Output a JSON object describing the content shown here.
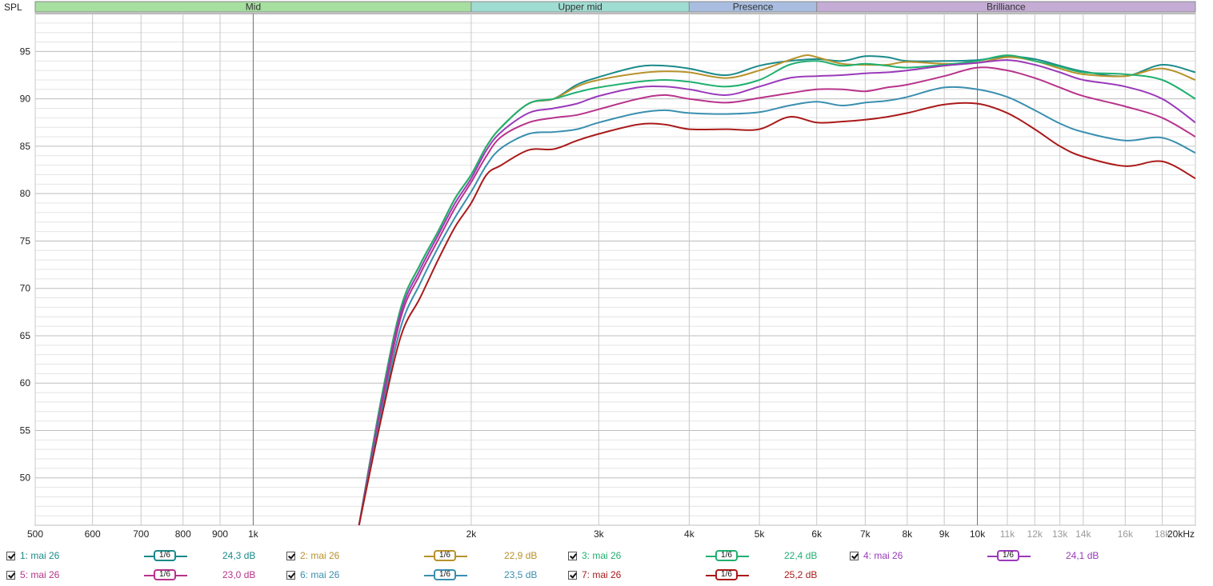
{
  "chart_data": {
    "type": "line",
    "title": "",
    "ylabel": "SPL",
    "xlabel": "",
    "x_scale": "log",
    "xlim": [
      500,
      20000
    ],
    "ylim": [
      45,
      99
    ],
    "grid": true,
    "bands": [
      {
        "label": "Mid",
        "from": 500,
        "to": 2000,
        "color": "#a6dfa0"
      },
      {
        "label": "Upper mid",
        "from": 2000,
        "to": 4000,
        "color": "#9fdcd2"
      },
      {
        "label": "Presence",
        "from": 4000,
        "to": 6000,
        "color": "#a8bde0"
      },
      {
        "label": "Brilliance",
        "from": 6000,
        "to": 20000,
        "color": "#c4acd4"
      }
    ],
    "y_ticks": [
      50,
      55,
      60,
      65,
      70,
      75,
      80,
      85,
      90,
      95
    ],
    "y_tick_labels": [
      "50",
      "55",
      "60",
      "65",
      "70",
      "75",
      "80",
      "85",
      "90",
      "95"
    ],
    "x_ticks": [
      500,
      600,
      700,
      800,
      900,
      1000,
      2000,
      3000,
      4000,
      5000,
      6000,
      7000,
      8000,
      9000,
      10000,
      11000,
      12000,
      13000,
      14000,
      16000,
      18000,
      20000
    ],
    "x_tick_labels": [
      "500",
      "600",
      "700",
      "800",
      "900",
      "1k",
      "2k",
      "3k",
      "4k",
      "5k",
      "6k",
      "7k",
      "8k",
      "9k",
      "10k",
      "11k",
      "12k",
      "13k",
      "14k",
      "16k",
      "18k",
      "20kHz"
    ],
    "series": [
      {
        "name": "1: mai 26",
        "color": "#1a8a8a",
        "smoothing": "1/6",
        "level": "24,3 dB",
        "points": [
          [
            1400,
            45
          ],
          [
            1500,
            58
          ],
          [
            1600,
            68
          ],
          [
            1700,
            72.5
          ],
          [
            1800,
            76
          ],
          [
            1900,
            79.5
          ],
          [
            2000,
            82
          ],
          [
            2100,
            85
          ],
          [
            2200,
            87
          ],
          [
            2400,
            89.5
          ],
          [
            2600,
            90
          ],
          [
            2800,
            91.5
          ],
          [
            3000,
            92.3
          ],
          [
            3400,
            93.4
          ],
          [
            3700,
            93.5
          ],
          [
            4000,
            93.2
          ],
          [
            4500,
            92.5
          ],
          [
            5000,
            93.5
          ],
          [
            5500,
            94
          ],
          [
            6000,
            94.2
          ],
          [
            6500,
            94
          ],
          [
            7000,
            94.5
          ],
          [
            7500,
            94.4
          ],
          [
            8000,
            94
          ],
          [
            9000,
            94
          ],
          [
            10000,
            94.1
          ],
          [
            11000,
            94.5
          ],
          [
            12000,
            94.2
          ],
          [
            13000,
            93.5
          ],
          [
            14000,
            92.9
          ],
          [
            16000,
            92.4
          ],
          [
            18000,
            93.6
          ],
          [
            20000,
            92.8
          ]
        ]
      },
      {
        "name": "2: mai 26",
        "color": "#b8922a",
        "smoothing": "1/6",
        "level": "22,9 dB",
        "points": [
          [
            1400,
            45
          ],
          [
            1500,
            58
          ],
          [
            1600,
            68
          ],
          [
            1700,
            72.5
          ],
          [
            1800,
            76
          ],
          [
            1900,
            79.5
          ],
          [
            2000,
            82
          ],
          [
            2100,
            85
          ],
          [
            2200,
            87
          ],
          [
            2400,
            89.5
          ],
          [
            2600,
            90
          ],
          [
            2800,
            91.3
          ],
          [
            3000,
            92
          ],
          [
            3400,
            92.7
          ],
          [
            3700,
            92.9
          ],
          [
            4000,
            92.8
          ],
          [
            4500,
            92.2
          ],
          [
            5000,
            93
          ],
          [
            5500,
            94.1
          ],
          [
            5800,
            94.6
          ],
          [
            6000,
            94.4
          ],
          [
            6500,
            93.7
          ],
          [
            7000,
            93.6
          ],
          [
            7500,
            93.6
          ],
          [
            8000,
            93.9
          ],
          [
            9000,
            93.7
          ],
          [
            10000,
            93.8
          ],
          [
            11000,
            94.4
          ],
          [
            12000,
            94
          ],
          [
            13000,
            93.2
          ],
          [
            14000,
            92.6
          ],
          [
            16000,
            92.4
          ],
          [
            18000,
            93.2
          ],
          [
            20000,
            92
          ]
        ]
      },
      {
        "name": "3: mai 26",
        "color": "#20b070",
        "smoothing": "1/6",
        "level": "22,4 dB",
        "points": [
          [
            1400,
            45
          ],
          [
            1500,
            58
          ],
          [
            1600,
            68
          ],
          [
            1700,
            72.5
          ],
          [
            1800,
            76
          ],
          [
            1900,
            79.5
          ],
          [
            2000,
            82
          ],
          [
            2100,
            85
          ],
          [
            2200,
            87
          ],
          [
            2400,
            89.5
          ],
          [
            2600,
            90
          ],
          [
            2800,
            90.7
          ],
          [
            3000,
            91.2
          ],
          [
            3400,
            91.8
          ],
          [
            3700,
            92
          ],
          [
            4000,
            91.8
          ],
          [
            4500,
            91.3
          ],
          [
            5000,
            92
          ],
          [
            5500,
            93.6
          ],
          [
            6000,
            94
          ],
          [
            6500,
            93.5
          ],
          [
            7000,
            93.7
          ],
          [
            7500,
            93.5
          ],
          [
            8000,
            93.3
          ],
          [
            9000,
            93.6
          ],
          [
            10000,
            94
          ],
          [
            11000,
            94.6
          ],
          [
            12000,
            94
          ],
          [
            13000,
            93.4
          ],
          [
            14000,
            92.8
          ],
          [
            16000,
            92.6
          ],
          [
            18000,
            92
          ],
          [
            20000,
            90
          ]
        ]
      },
      {
        "name": "4: mai 26",
        "color": "#9a3aba",
        "smoothing": "1/6",
        "level": "24,1 dB",
        "points": [
          [
            1400,
            45
          ],
          [
            1500,
            57.5
          ],
          [
            1600,
            67.5
          ],
          [
            1700,
            72
          ],
          [
            1800,
            75.6
          ],
          [
            1900,
            79
          ],
          [
            2000,
            81.6
          ],
          [
            2100,
            84.6
          ],
          [
            2200,
            86.5
          ],
          [
            2400,
            88.5
          ],
          [
            2600,
            89
          ],
          [
            2800,
            89.5
          ],
          [
            3000,
            90.3
          ],
          [
            3400,
            91.2
          ],
          [
            3700,
            91.3
          ],
          [
            4000,
            91
          ],
          [
            4500,
            90.4
          ],
          [
            5000,
            91.3
          ],
          [
            5500,
            92.2
          ],
          [
            6000,
            92.4
          ],
          [
            6500,
            92.5
          ],
          [
            7000,
            92.7
          ],
          [
            7500,
            92.8
          ],
          [
            8000,
            93
          ],
          [
            9000,
            93.5
          ],
          [
            10000,
            93.8
          ],
          [
            11000,
            94.1
          ],
          [
            12000,
            93.6
          ],
          [
            13000,
            92.8
          ],
          [
            14000,
            92
          ],
          [
            16000,
            91.3
          ],
          [
            18000,
            90
          ],
          [
            20000,
            87.5
          ]
        ]
      },
      {
        "name": "5: mai 26",
        "color": "#b8338a",
        "smoothing": "1/6",
        "level": "23,0 dB",
        "points": [
          [
            1400,
            45
          ],
          [
            1500,
            57
          ],
          [
            1600,
            67
          ],
          [
            1700,
            71.5
          ],
          [
            1800,
            75.1
          ],
          [
            1900,
            78.5
          ],
          [
            2000,
            81.2
          ],
          [
            2100,
            84
          ],
          [
            2200,
            86
          ],
          [
            2400,
            87.5
          ],
          [
            2600,
            88
          ],
          [
            2800,
            88.3
          ],
          [
            3000,
            88.9
          ],
          [
            3400,
            90
          ],
          [
            3700,
            90.4
          ],
          [
            4000,
            90
          ],
          [
            4500,
            89.6
          ],
          [
            5000,
            90.1
          ],
          [
            5500,
            90.6
          ],
          [
            6000,
            91
          ],
          [
            6500,
            91
          ],
          [
            7000,
            90.8
          ],
          [
            7500,
            91.2
          ],
          [
            8000,
            91.5
          ],
          [
            9000,
            92.4
          ],
          [
            10000,
            93.3
          ],
          [
            11000,
            93
          ],
          [
            12000,
            92.2
          ],
          [
            13000,
            91.2
          ],
          [
            14000,
            90.3
          ],
          [
            16000,
            89.2
          ],
          [
            18000,
            88
          ],
          [
            20000,
            86
          ]
        ]
      },
      {
        "name": "6: mai 26",
        "color": "#3a8fb0",
        "smoothing": "1/6",
        "level": "23,5 dB",
        "points": [
          [
            1400,
            45
          ],
          [
            1500,
            56.5
          ],
          [
            1600,
            66
          ],
          [
            1700,
            70.5
          ],
          [
            1800,
            74.3
          ],
          [
            1900,
            77.5
          ],
          [
            2000,
            80.2
          ],
          [
            2100,
            83
          ],
          [
            2200,
            84.8
          ],
          [
            2400,
            86.3
          ],
          [
            2600,
            86.5
          ],
          [
            2800,
            86.8
          ],
          [
            3000,
            87.5
          ],
          [
            3400,
            88.5
          ],
          [
            3700,
            88.8
          ],
          [
            4000,
            88.5
          ],
          [
            4500,
            88.4
          ],
          [
            5000,
            88.6
          ],
          [
            5500,
            89.3
          ],
          [
            6000,
            89.7
          ],
          [
            6500,
            89.3
          ],
          [
            7000,
            89.6
          ],
          [
            7500,
            89.8
          ],
          [
            8000,
            90.2
          ],
          [
            9000,
            91.2
          ],
          [
            10000,
            91
          ],
          [
            11000,
            90.2
          ],
          [
            12000,
            88.8
          ],
          [
            13000,
            87.4
          ],
          [
            14000,
            86.5
          ],
          [
            16000,
            85.6
          ],
          [
            18000,
            85.9
          ],
          [
            20000,
            84.3
          ]
        ]
      },
      {
        "name": "7: mai 26",
        "color": "#aa1a1a",
        "smoothing": "1/6",
        "level": "25,2 dB",
        "points": [
          [
            1400,
            45
          ],
          [
            1500,
            56
          ],
          [
            1600,
            65
          ],
          [
            1700,
            69
          ],
          [
            1800,
            73
          ],
          [
            1900,
            76.5
          ],
          [
            2000,
            79
          ],
          [
            2100,
            82
          ],
          [
            2200,
            83
          ],
          [
            2400,
            84.6
          ],
          [
            2600,
            84.7
          ],
          [
            2800,
            85.6
          ],
          [
            3000,
            86.3
          ],
          [
            3400,
            87.3
          ],
          [
            3700,
            87.3
          ],
          [
            4000,
            86.8
          ],
          [
            4500,
            86.8
          ],
          [
            5000,
            86.8
          ],
          [
            5500,
            88.1
          ],
          [
            6000,
            87.5
          ],
          [
            6500,
            87.6
          ],
          [
            7000,
            87.8
          ],
          [
            7500,
            88.1
          ],
          [
            8000,
            88.5
          ],
          [
            9000,
            89.4
          ],
          [
            10000,
            89.5
          ],
          [
            11000,
            88.5
          ],
          [
            12000,
            86.8
          ],
          [
            13000,
            85
          ],
          [
            14000,
            83.9
          ],
          [
            16000,
            82.9
          ],
          [
            18000,
            83.4
          ],
          [
            20000,
            81.6
          ]
        ]
      }
    ]
  }
}
